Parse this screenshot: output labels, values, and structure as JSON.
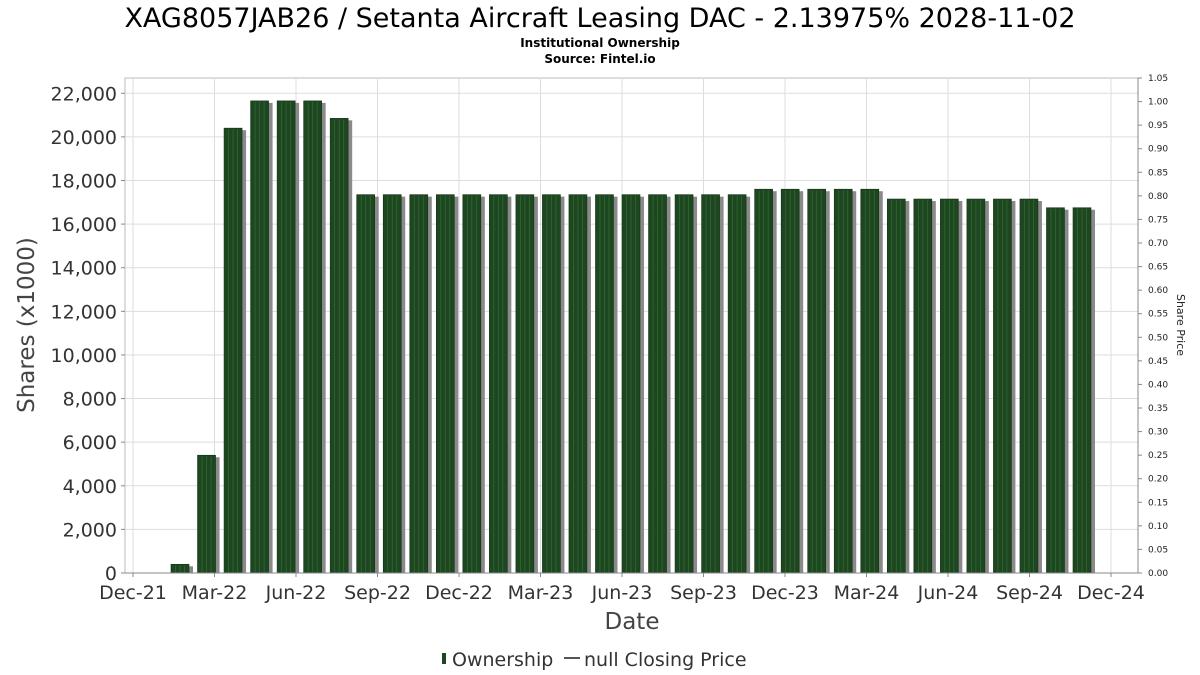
{
  "chart_data": {
    "type": "bar",
    "title": "XAG8057JAB26 / Setanta Aircraft Leasing DAC - 2.13975% 2028-11-02",
    "subtitle_lines": [
      "Institutional Ownership",
      "Source: Fintel.io"
    ],
    "xlabel": "Date",
    "ylabel": "Shares (x1000)",
    "y2label": "Share Price",
    "ylim": [
      0,
      22700
    ],
    "y2lim": [
      0,
      1.05
    ],
    "grid": true,
    "legend_position": "bottom-center",
    "x_ticks": [
      "Dec-21",
      "Mar-22",
      "Jun-22",
      "Sep-22",
      "Dec-22",
      "Mar-23",
      "Jun-23",
      "Sep-23",
      "Dec-23",
      "Mar-24",
      "Jun-24",
      "Sep-24",
      "Dec-24"
    ],
    "y_ticks": [
      "0",
      "2,000",
      "4,000",
      "6,000",
      "8,000",
      "10,000",
      "12,000",
      "14,000",
      "16,000",
      "18,000",
      "20,000",
      "22,000"
    ],
    "y2_ticks": [
      "0.00",
      "0.05",
      "0.10",
      "0.15",
      "0.20",
      "0.25",
      "0.30",
      "0.35",
      "0.40",
      "0.45",
      "0.50",
      "0.55",
      "0.60",
      "0.65",
      "0.70",
      "0.75",
      "0.80",
      "0.85",
      "0.90",
      "0.95",
      "1.00",
      "1.05"
    ],
    "series": [
      {
        "name": "Ownership",
        "color": "#1e4620",
        "values": [
          400,
          5400,
          20400,
          21650,
          21650,
          21650,
          20850,
          17350,
          17350,
          17350,
          17350,
          17350,
          17350,
          17350,
          17350,
          17350,
          17350,
          17350,
          17350,
          17350,
          17350,
          17350,
          17600,
          17600,
          17600,
          17600,
          17600,
          17150,
          17150,
          17150,
          17150,
          17150,
          17150,
          16750,
          16750
        ]
      },
      {
        "name": "null Closing Price",
        "color": "#555555",
        "values": []
      }
    ]
  }
}
